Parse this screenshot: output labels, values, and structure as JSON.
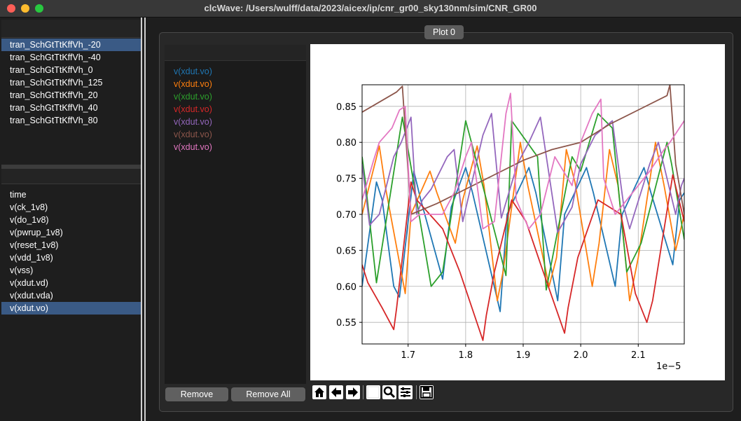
{
  "window": {
    "title": "clcWave: /Users/wulff/data/2023/aicex/ip/cnr_gr00_sky130nm/sim/CNR_GR00"
  },
  "simulations": {
    "items": [
      "tran_SchGtTtKffVh_-20",
      "tran_SchGtTtKffVh_-40",
      "tran_SchGtTtKffVh_0",
      "tran_SchGtTtKffVh_125",
      "tran_SchGtTtKffVh_20",
      "tran_SchGtTtKffVh_40",
      "tran_SchGtTtKffVh_80"
    ],
    "selected_index": 0
  },
  "waveforms": {
    "items": [
      "time",
      "v(ck_1v8)",
      "v(do_1v8)",
      "v(pwrup_1v8)",
      "v(reset_1v8)",
      "v(vdd_1v8)",
      "v(vss)",
      "v(xdut.vd)",
      "v(xdut.vda)",
      "v(xdut.vo)"
    ],
    "selected_index": 9
  },
  "plot_tab": {
    "label": "Plot 0"
  },
  "plotted_signals": [
    {
      "label": "v(xdut.vo)",
      "color": "#1f77b4"
    },
    {
      "label": "v(xdut.vo)",
      "color": "#ff7f0e"
    },
    {
      "label": "v(xdut.vo)",
      "color": "#2ca02c"
    },
    {
      "label": "v(xdut.vo)",
      "color": "#d62728"
    },
    {
      "label": "v(xdut.vo)",
      "color": "#9467bd"
    },
    {
      "label": "v(xdut.vo)",
      "color": "#8c564b"
    },
    {
      "label": "v(xdut.vo)",
      "color": "#e377c2"
    }
  ],
  "buttons": {
    "remove": "Remove",
    "remove_all": "Remove All"
  },
  "toolbar_icons": [
    "home-icon",
    "back-arrow-icon",
    "forward-arrow-icon",
    "pan-icon",
    "zoom-icon",
    "configure-subplots-icon",
    "save-icon"
  ],
  "chart_data": {
    "type": "line",
    "x_scale_label": "1e−5",
    "xlim": [
      1.62,
      2.18
    ],
    "ylim": [
      0.52,
      0.88
    ],
    "x_ticks": [
      1.7,
      1.8,
      1.9,
      2.0,
      2.1
    ],
    "x_tick_labels": [
      "1.7",
      "1.8",
      "1.9",
      "2.0",
      "2.1"
    ],
    "y_ticks": [
      0.55,
      0.6,
      0.65,
      0.7,
      0.75,
      0.8,
      0.85
    ],
    "y_tick_labels": [
      "0.55",
      "0.60",
      "0.65",
      "0.70",
      "0.75",
      "0.80",
      "0.85"
    ],
    "grid": true,
    "series": [
      {
        "color": "#1f77b4",
        "x": [
          1.62,
          1.645,
          1.655,
          1.675,
          1.685,
          1.71,
          1.722,
          1.76,
          1.775,
          1.8,
          1.812,
          1.86,
          1.872,
          1.91,
          1.922,
          1.96,
          1.972,
          2.01,
          2.022,
          2.06,
          2.072,
          2.11,
          2.122,
          2.16,
          2.172,
          2.18
        ],
        "y": [
          0.6,
          0.745,
          0.72,
          0.6,
          0.585,
          0.76,
          0.72,
          0.61,
          0.71,
          0.765,
          0.73,
          0.565,
          0.7,
          0.765,
          0.73,
          0.58,
          0.7,
          0.765,
          0.73,
          0.6,
          0.7,
          0.765,
          0.73,
          0.63,
          0.72,
          0.73
        ]
      },
      {
        "color": "#ff7f0e",
        "x": [
          1.62,
          1.65,
          1.66,
          1.695,
          1.705,
          1.738,
          1.75,
          1.782,
          1.795,
          1.82,
          1.832,
          1.855,
          1.865,
          1.895,
          1.908,
          1.945,
          1.958,
          1.975,
          1.99,
          2.02,
          2.032,
          2.05,
          2.065,
          2.085,
          2.1,
          2.13,
          2.145,
          2.165,
          2.18
        ],
        "y": [
          0.7,
          0.795,
          0.74,
          0.59,
          0.7,
          0.76,
          0.73,
          0.66,
          0.72,
          0.795,
          0.74,
          0.58,
          0.62,
          0.8,
          0.74,
          0.6,
          0.64,
          0.79,
          0.745,
          0.6,
          0.66,
          0.79,
          0.74,
          0.58,
          0.64,
          0.8,
          0.74,
          0.65,
          0.7
        ]
      },
      {
        "color": "#2ca02c",
        "x": [
          1.62,
          1.625,
          1.645,
          1.69,
          1.702,
          1.74,
          1.76,
          1.8,
          1.82,
          1.87,
          1.88,
          1.925,
          1.94,
          1.985,
          2.0,
          2.03,
          2.055,
          2.08,
          2.105,
          2.15,
          2.158,
          2.18
        ],
        "y": [
          0.78,
          0.75,
          0.605,
          0.835,
          0.78,
          0.6,
          0.62,
          0.83,
          0.77,
          0.615,
          0.83,
          0.78,
          0.595,
          0.78,
          0.76,
          0.84,
          0.82,
          0.62,
          0.66,
          0.8,
          0.77,
          0.665
        ]
      },
      {
        "color": "#d62728",
        "x": [
          1.62,
          1.63,
          1.655,
          1.675,
          1.68,
          1.705,
          1.715,
          1.76,
          1.79,
          1.83,
          1.836,
          1.85,
          1.88,
          1.905,
          1.935,
          1.972,
          1.978,
          1.995,
          2.03,
          2.07,
          2.095,
          2.115,
          2.125,
          2.16,
          2.18
        ],
        "y": [
          0.63,
          0.605,
          0.57,
          0.54,
          0.57,
          0.745,
          0.72,
          0.68,
          0.62,
          0.525,
          0.56,
          0.62,
          0.72,
          0.69,
          0.62,
          0.535,
          0.57,
          0.64,
          0.72,
          0.7,
          0.59,
          0.55,
          0.58,
          0.755,
          0.69
        ]
      },
      {
        "color": "#9467bd",
        "x": [
          1.62,
          1.633,
          1.65,
          1.675,
          1.688,
          1.705,
          1.715,
          1.725,
          1.74,
          1.768,
          1.78,
          1.795,
          1.83,
          1.845,
          1.862,
          1.89,
          1.91,
          1.93,
          1.96,
          1.985,
          2.0,
          2.025,
          2.055,
          2.075,
          2.085,
          2.12,
          2.135,
          2.165,
          2.175,
          2.18
        ],
        "y": [
          0.77,
          0.685,
          0.7,
          0.78,
          0.8,
          0.835,
          0.7,
          0.72,
          0.735,
          0.78,
          0.79,
          0.69,
          0.81,
          0.84,
          0.695,
          0.77,
          0.8,
          0.835,
          0.675,
          0.71,
          0.77,
          0.81,
          0.83,
          0.71,
          0.68,
          0.77,
          0.8,
          0.7,
          0.74,
          0.75
        ]
      },
      {
        "color": "#8c564b",
        "x": [
          1.62,
          1.68,
          1.69,
          1.705,
          1.75,
          1.8,
          1.85,
          1.9,
          1.95,
          2.0,
          2.05,
          2.1,
          2.15,
          2.155,
          2.165,
          2.18
        ],
        "y": [
          0.842,
          0.87,
          0.878,
          0.7,
          0.715,
          0.735,
          0.755,
          0.775,
          0.79,
          0.8,
          0.825,
          0.845,
          0.865,
          0.88,
          0.77,
          0.7
        ]
      },
      {
        "color": "#e377c2",
        "x": [
          1.62,
          1.64,
          1.65,
          1.672,
          1.685,
          1.695,
          1.705,
          1.72,
          1.76,
          1.78,
          1.8,
          1.81,
          1.83,
          1.85,
          1.87,
          1.878,
          1.888,
          1.91,
          1.93,
          1.955,
          1.985,
          2.0,
          2.02,
          2.035,
          2.04,
          2.06,
          2.08,
          2.12,
          2.145,
          2.155,
          2.18
        ],
        "y": [
          0.72,
          0.775,
          0.8,
          0.82,
          0.845,
          0.85,
          0.69,
          0.7,
          0.7,
          0.73,
          0.78,
          0.8,
          0.68,
          0.69,
          0.84,
          0.868,
          0.72,
          0.68,
          0.7,
          0.78,
          0.74,
          0.8,
          0.84,
          0.86,
          0.75,
          0.7,
          0.72,
          0.76,
          0.79,
          0.8,
          0.83
        ]
      }
    ]
  }
}
